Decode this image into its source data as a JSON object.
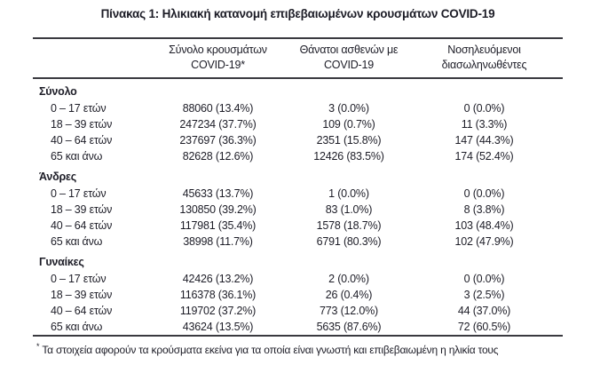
{
  "title": "Πίνακας 1: Ηλικιακή κατανομή επιβεβαιωμένων κρουσμάτων COVID-19",
  "table": {
    "headers": [
      {
        "line1": "Σύνολο κρουσμάτων",
        "line2": "COVID-19*"
      },
      {
        "line1": "Θάνατοι ασθενών με",
        "line2": "COVID-19"
      },
      {
        "line1": "Νοσηλευόμενοι",
        "line2": "διασωληνωθέντες"
      }
    ],
    "sections": [
      {
        "label": "Σύνολο",
        "rows": [
          {
            "age": "0 – 17 ετών",
            "cases": "88060 (13.4%)",
            "deaths": "3 (0.0%)",
            "intubated": "0 (0.0%)"
          },
          {
            "age": "18 – 39 ετών",
            "cases": "247234 (37.7%)",
            "deaths": "109 (0.7%)",
            "intubated": "11 (3.3%)"
          },
          {
            "age": "40 – 64 ετών",
            "cases": "237697 (36.3%)",
            "deaths": "2351 (15.8%)",
            "intubated": "147 (44.3%)"
          },
          {
            "age": "65 και άνω",
            "cases": "82628 (12.6%)",
            "deaths": "12426 (83.5%)",
            "intubated": "174 (52.4%)"
          }
        ]
      },
      {
        "label": "Άνδρες",
        "rows": [
          {
            "age": "0 – 17 ετών",
            "cases": "45633 (13.7%)",
            "deaths": "1 (0.0%)",
            "intubated": "0 (0.0%)"
          },
          {
            "age": "18 – 39 ετών",
            "cases": "130850 (39.2%)",
            "deaths": "83 (1.0%)",
            "intubated": "8 (3.8%)"
          },
          {
            "age": "40 – 64 ετών",
            "cases": "117981 (35.4%)",
            "deaths": "1578 (18.7%)",
            "intubated": "103 (48.4%)"
          },
          {
            "age": "65 και άνω",
            "cases": "38998 (11.7%)",
            "deaths": "6791 (80.3%)",
            "intubated": "102 (47.9%)"
          }
        ]
      },
      {
        "label": "Γυναίκες",
        "rows": [
          {
            "age": "0 – 17 ετών",
            "cases": "42426 (13.2%)",
            "deaths": "2 (0.0%)",
            "intubated": "0 (0.0%)"
          },
          {
            "age": "18 – 39 ετών",
            "cases": "116378 (36.1%)",
            "deaths": "26 (0.4%)",
            "intubated": "3 (2.5%)"
          },
          {
            "age": "40 – 64 ετών",
            "cases": "119702 (37.2%)",
            "deaths": "773 (12.0%)",
            "intubated": "44 (37.0%)"
          },
          {
            "age": "65 και άνω",
            "cases": "43624 (13.5%)",
            "deaths": "5635 (87.6%)",
            "intubated": "72 (60.5%)"
          }
        ]
      }
    ]
  },
  "footnote": {
    "marker": "*",
    "text": "Τα στοιχεία αφορούν τα κρούσματα εκείνα για τα οποία είναι γνωστή και επιβεβαιωμένη η ηλικία τους"
  },
  "colors": {
    "text": "#1d1d27",
    "rule": "#3a3a40",
    "background": "#ffffff"
  }
}
